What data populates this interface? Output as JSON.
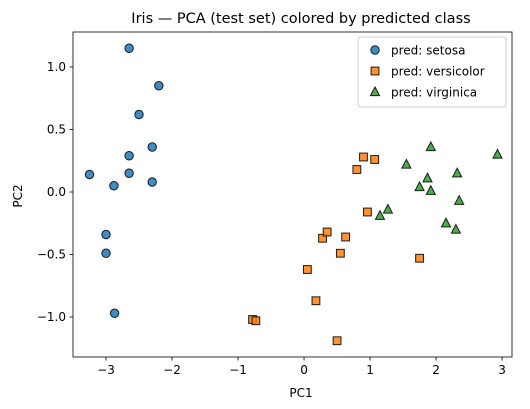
{
  "chart_data": {
    "type": "scatter",
    "title": "Iris — PCA (test set) colored by predicted class",
    "xlabel": "PC1",
    "ylabel": "PC2",
    "xlim": [
      -3.5,
      3.15
    ],
    "ylim": [
      -1.32,
      1.28
    ],
    "xticks": [
      -3,
      -2,
      -1,
      0,
      1,
      2,
      3
    ],
    "yticks": [
      -1.0,
      -0.5,
      0.0,
      0.5,
      1.0
    ],
    "xtick_labels": [
      "−3",
      "−2",
      "−1",
      "0",
      "1",
      "2",
      "3"
    ],
    "ytick_labels": [
      "−1.0",
      "−0.5",
      "0.0",
      "0.5",
      "1.0"
    ],
    "grid": false,
    "legend_position": "top-right",
    "series": [
      {
        "name": "pred: setosa",
        "marker": "circle",
        "color": "#1f77b4",
        "points": [
          [
            -2.65,
            1.15
          ],
          [
            -2.2,
            0.85
          ],
          [
            -2.5,
            0.62
          ],
          [
            -2.3,
            0.36
          ],
          [
            -2.65,
            0.29
          ],
          [
            -2.65,
            0.15
          ],
          [
            -2.3,
            0.08
          ],
          [
            -2.88,
            0.05
          ],
          [
            -3.25,
            0.14
          ],
          [
            -3.0,
            -0.34
          ],
          [
            -3.0,
            -0.49
          ],
          [
            -2.87,
            -0.97
          ]
        ]
      },
      {
        "name": "pred: versicolor",
        "marker": "square",
        "color": "#ff7f0e",
        "points": [
          [
            0.9,
            0.28
          ],
          [
            1.07,
            0.26
          ],
          [
            0.8,
            0.18
          ],
          [
            0.96,
            -0.16
          ],
          [
            0.28,
            -0.37
          ],
          [
            0.35,
            -0.32
          ],
          [
            0.63,
            -0.36
          ],
          [
            0.55,
            -0.49
          ],
          [
            0.05,
            -0.62
          ],
          [
            1.75,
            -0.53
          ],
          [
            0.18,
            -0.87
          ],
          [
            -0.78,
            -1.02
          ],
          [
            -0.73,
            -1.03
          ],
          [
            0.5,
            -1.19
          ]
        ]
      },
      {
        "name": "pred: virginica",
        "marker": "triangle",
        "color": "#2ca02c",
        "points": [
          [
            1.92,
            0.36
          ],
          [
            2.93,
            0.3
          ],
          [
            1.55,
            0.22
          ],
          [
            2.32,
            0.15
          ],
          [
            1.87,
            0.11
          ],
          [
            1.75,
            0.04
          ],
          [
            1.92,
            0.01
          ],
          [
            2.35,
            -0.07
          ],
          [
            1.27,
            -0.14
          ],
          [
            1.15,
            -0.19
          ],
          [
            2.15,
            -0.25
          ],
          [
            2.3,
            -0.3
          ]
        ]
      }
    ]
  }
}
